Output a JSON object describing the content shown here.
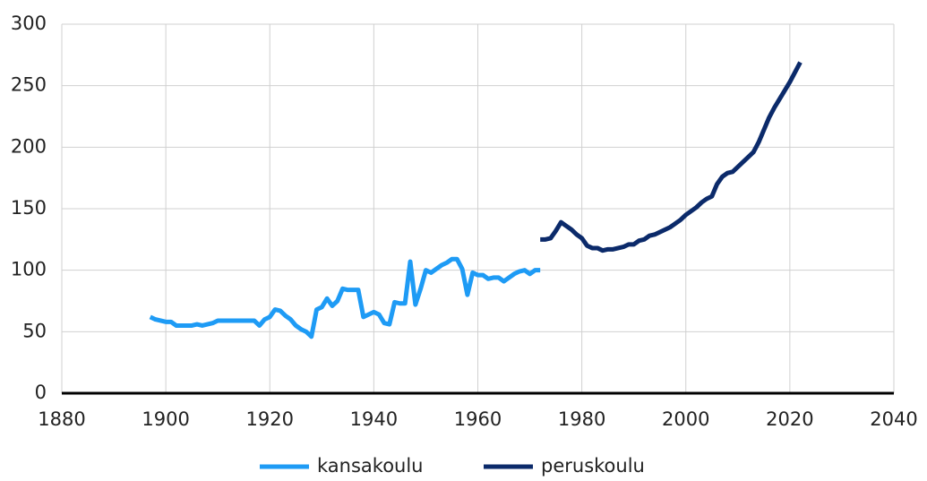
{
  "chart_data": {
    "type": "line",
    "xlim": [
      1880,
      2040
    ],
    "xticks": [
      1880,
      1900,
      1920,
      1940,
      1960,
      1980,
      2000,
      2020,
      2040
    ],
    "ylim": [
      0,
      300
    ],
    "yticks": [
      0,
      50,
      100,
      150,
      200,
      250,
      300
    ],
    "grid": true,
    "legend": "bottom",
    "series": [
      {
        "name": "kansakoulu",
        "color": "#1e9bf5",
        "x": [
          1897,
          1898,
          1899,
          1900,
          1901,
          1902,
          1903,
          1904,
          1905,
          1906,
          1907,
          1908,
          1909,
          1910,
          1911,
          1912,
          1913,
          1914,
          1915,
          1916,
          1917,
          1918,
          1919,
          1920,
          1921,
          1922,
          1923,
          1924,
          1925,
          1926,
          1927,
          1928,
          1929,
          1930,
          1931,
          1932,
          1933,
          1934,
          1935,
          1936,
          1937,
          1938,
          1939,
          1940,
          1941,
          1942,
          1943,
          1944,
          1945,
          1946,
          1947,
          1948,
          1949,
          1950,
          1951,
          1952,
          1953,
          1954,
          1955,
          1956,
          1957,
          1958,
          1959,
          1960,
          1961,
          1962,
          1963,
          1964,
          1965,
          1966,
          1967,
          1968,
          1969,
          1970,
          1971,
          1972
        ],
        "values": [
          62,
          60,
          59,
          58,
          58,
          55,
          55,
          55,
          55,
          56,
          55,
          56,
          57,
          59,
          59,
          59,
          59,
          59,
          59,
          59,
          59,
          55,
          60,
          62,
          68,
          67,
          63,
          60,
          55,
          52,
          50,
          46,
          68,
          70,
          77,
          71,
          75,
          85,
          84,
          84,
          84,
          62,
          64,
          66,
          64,
          57,
          56,
          74,
          73,
          73,
          107,
          72,
          85,
          100,
          98,
          101,
          104,
          106,
          109,
          109,
          101,
          80,
          98,
          96,
          96,
          93,
          94,
          94,
          91,
          94,
          97,
          99,
          100,
          97,
          100,
          100
        ]
      },
      {
        "name": "peruskoulu",
        "color": "#0b2a6a",
        "x": [
          1972,
          1973,
          1974,
          1975,
          1976,
          1977,
          1978,
          1979,
          1980,
          1981,
          1982,
          1983,
          1984,
          1985,
          1986,
          1987,
          1988,
          1989,
          1990,
          1991,
          1992,
          1993,
          1994,
          1995,
          1996,
          1997,
          1998,
          1999,
          2000,
          2001,
          2002,
          2003,
          2004,
          2005,
          2006,
          2007,
          2008,
          2009,
          2010,
          2011,
          2012,
          2013,
          2014,
          2015,
          2016,
          2017,
          2018,
          2019,
          2020,
          2021,
          2022
        ],
        "values": [
          125,
          125,
          126,
          132,
          139,
          136,
          133,
          129,
          126,
          120,
          118,
          118,
          116,
          117,
          117,
          118,
          119,
          121,
          121,
          124,
          125,
          128,
          129,
          131,
          133,
          135,
          138,
          141,
          145,
          148,
          151,
          155,
          158,
          160,
          170,
          176,
          179,
          180,
          184,
          188,
          192,
          196,
          204,
          214,
          224,
          232,
          239,
          246,
          253,
          261,
          269
        ]
      }
    ]
  }
}
